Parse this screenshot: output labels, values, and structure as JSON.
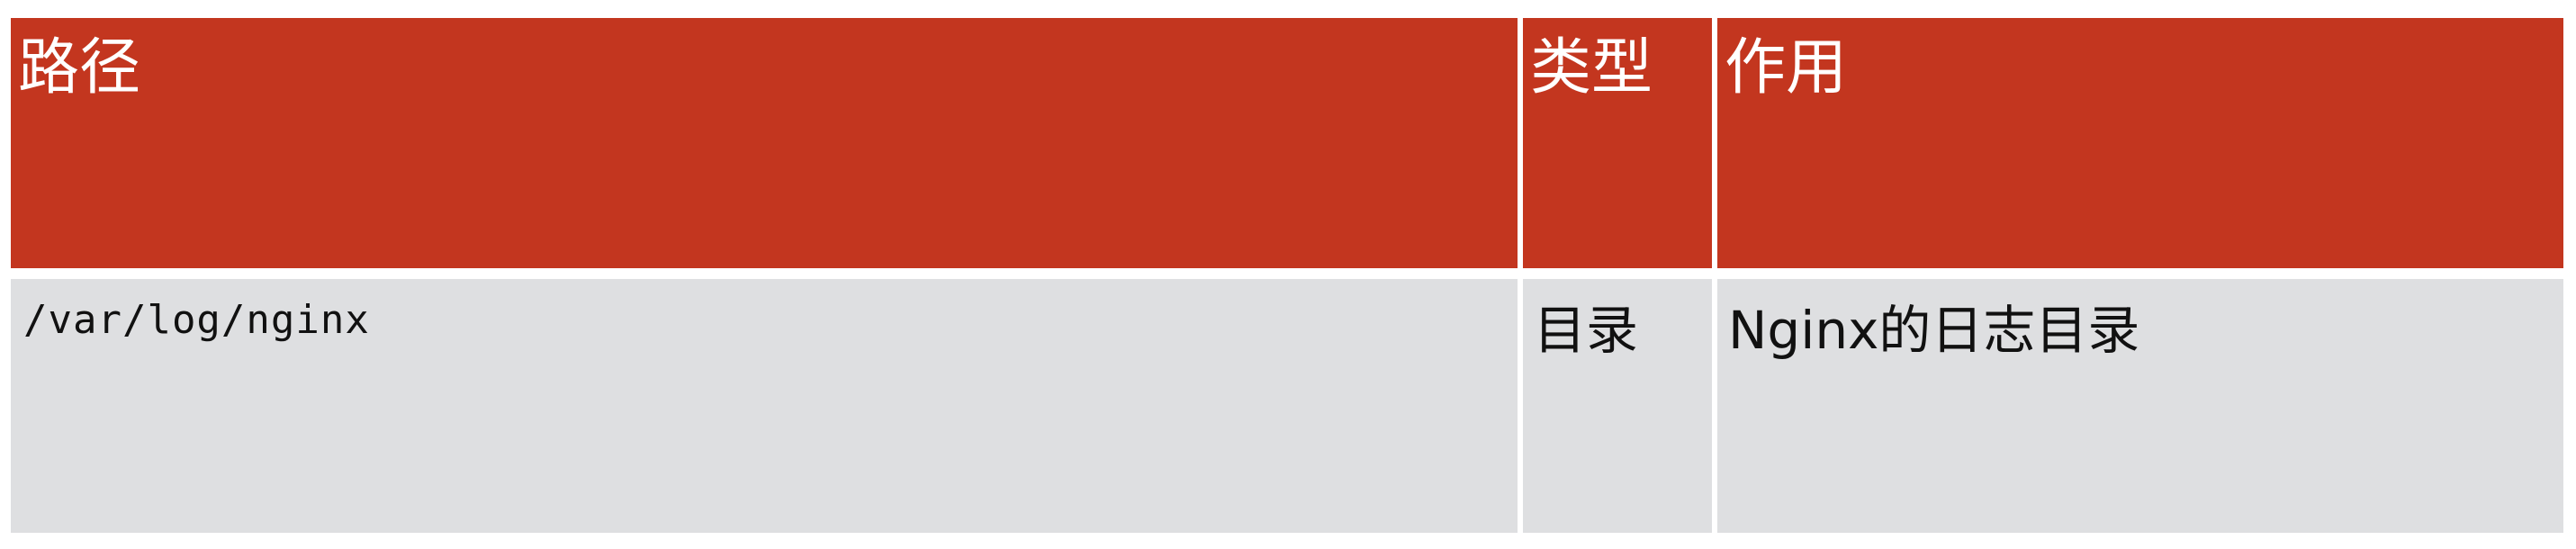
{
  "table": {
    "headers": [
      "路径",
      "类型",
      "作用"
    ],
    "rows": [
      [
        "/var/log/nginx",
        "目录",
        "Nginx的日志目录"
      ]
    ]
  },
  "colors": {
    "header_background": "#c3361f",
    "row_background": "#dedfe1",
    "header_text": "#ffffff",
    "body_text": "#111111"
  }
}
